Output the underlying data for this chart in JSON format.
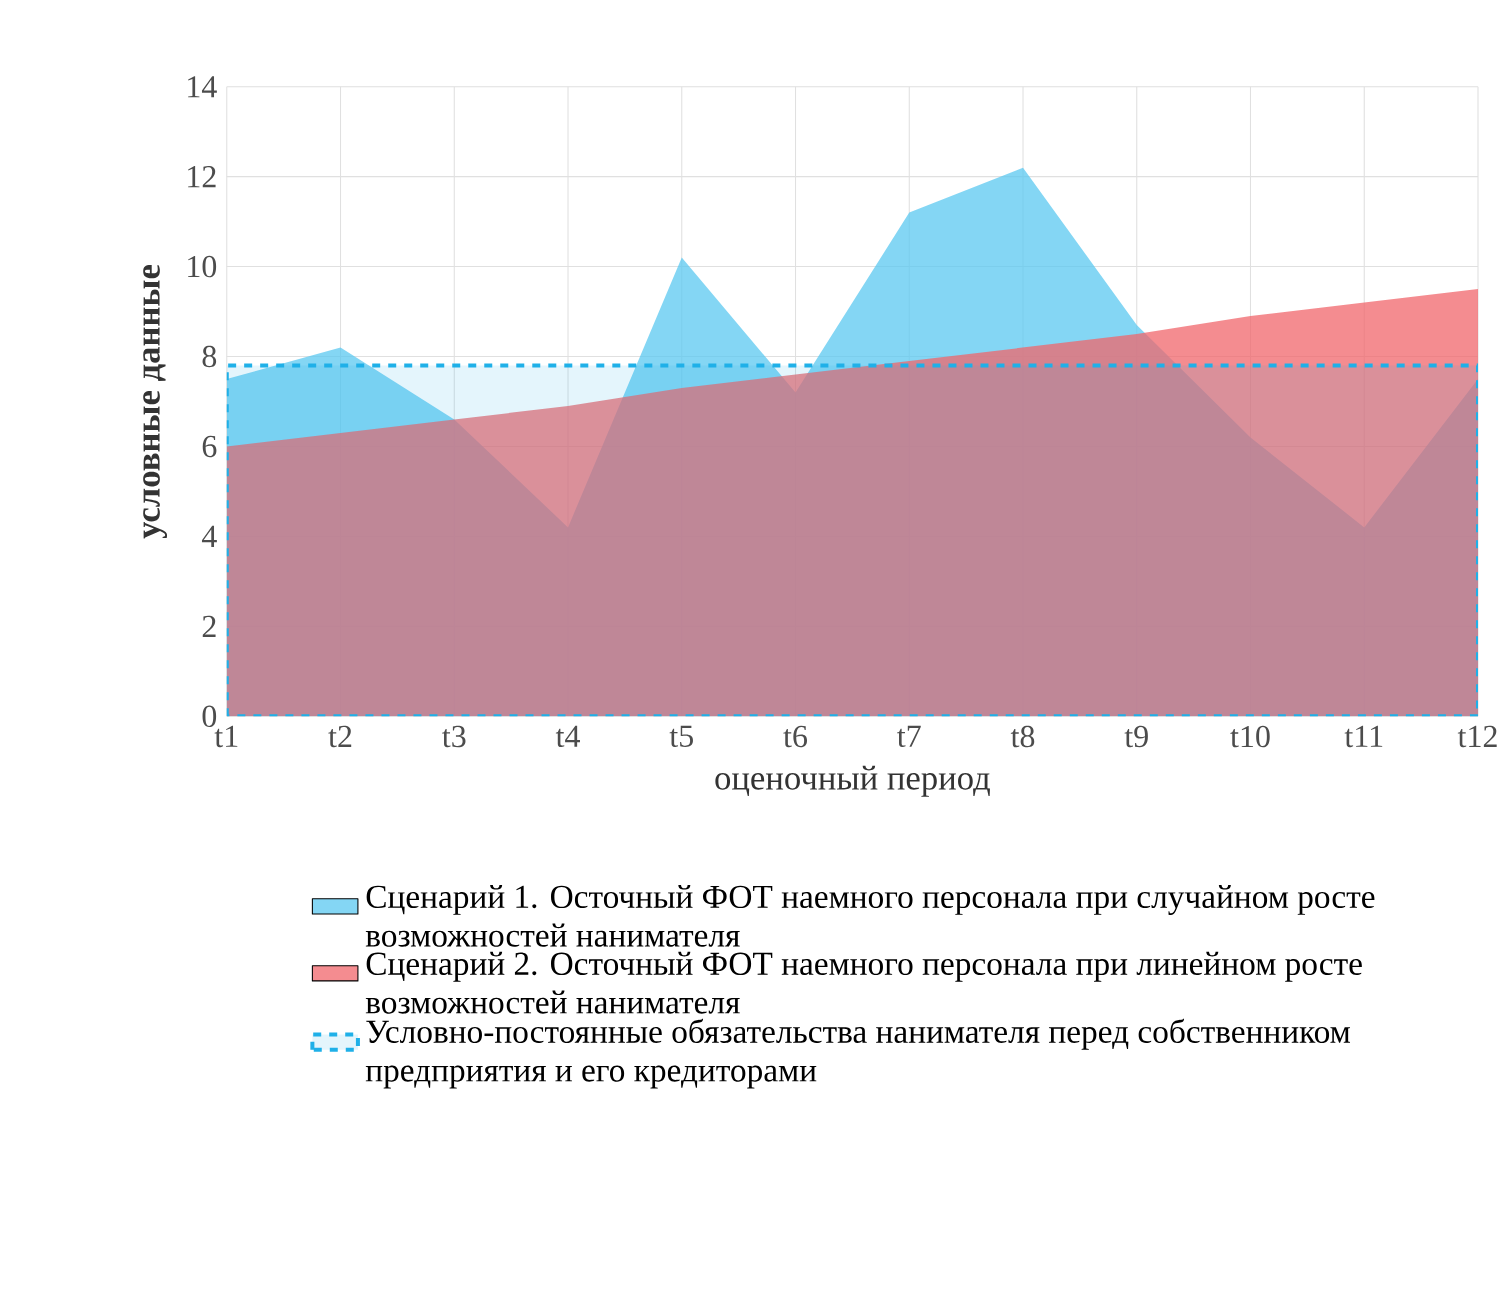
{
  "chart_data": {
    "type": "area",
    "xlabel": "оценочный период",
    "ylabel": "условные данные",
    "categories": [
      "t1",
      "t2",
      "t3",
      "t4",
      "t5",
      "t6",
      "t7",
      "t8",
      "t9",
      "t10",
      "t11",
      "t12"
    ],
    "ylim": [
      0,
      14
    ],
    "yticks": [
      0,
      2,
      4,
      6,
      8,
      10,
      12,
      14
    ],
    "grid": true,
    "legend": "bottom",
    "series": [
      {
        "name": "Сценарий 1. Осточный ФОТ наемного персонала при случайном росте возможностей нанимателя",
        "color": "#5bc8f0",
        "values": [
          7.5,
          8.2,
          6.6,
          4.2,
          10.2,
          7.2,
          11.2,
          12.2,
          8.7,
          6.2,
          4.2,
          7.5
        ]
      },
      {
        "name": "Сценарий 2. Осточный ФОТ наемного персонала при линейном росте возможностей нанимателя",
        "color": "#f0666b",
        "values": [
          6.0,
          6.3,
          6.6,
          6.9,
          7.3,
          7.6,
          7.9,
          8.2,
          8.5,
          8.9,
          9.2,
          9.5
        ]
      },
      {
        "name": "Условно-постоянные обязательства нанимателя перед собственником предприятия и его кредиторами",
        "color": "#1fb0e8",
        "line_style": "dashed",
        "values": [
          7.8,
          7.8,
          7.8,
          7.8,
          7.8,
          7.8,
          7.8,
          7.8,
          7.8,
          7.8,
          7.8,
          7.8
        ]
      }
    ]
  }
}
